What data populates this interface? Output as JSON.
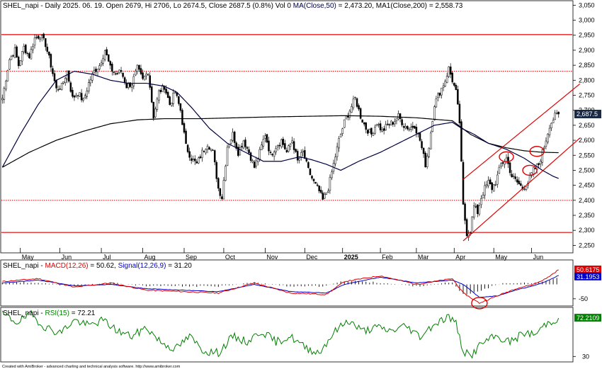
{
  "header": {
    "symbol": "SHEL_napi",
    "main": "SHEL_napi - Daily 2025. 06. 19. Open 2679, Hi 2706, Lo 2674.5, Close 2687.5 (0.8%) Vol 0",
    "ma50_label": "MA(Close,50)",
    "ma50_value": "= 2,473.20,",
    "ma200_label": "MA1(Close,200)",
    "ma200_value": "= 2,558.73",
    "macd_prefix": "SHEL_napi -",
    "macd_label": "MACD(12,26)",
    "macd_value": "= 50.62,",
    "signal_label": "Signal(12,26,9)",
    "signal_value": "= 31.20",
    "rsi_prefix": "SHEL_napi -",
    "rsi_label": "RSI(15)",
    "rsi_value": "= 72.21"
  },
  "footer": "Created with AmiBroker - advanced charting and technical analysis software. http://www.amibroker.com",
  "colors": {
    "price": "#000000",
    "ma50": "#000040",
    "ma200": "#000000",
    "hline": "#e00000",
    "channel": "#e00000",
    "macd": "#e00000",
    "signal": "#0000cc",
    "hist": "#000000",
    "rsi": "#008000",
    "last_price_bg": "#1a2a44",
    "macd_tag": "#e00000",
    "signal_tag": "#0000cc",
    "rsi_tag": "#008000"
  },
  "chart_data": {
    "type": "candlestick",
    "y_ticks": [
      "3,050",
      "3,000",
      "2,950",
      "2,900",
      "2,850",
      "2,800",
      "2,750",
      "2,700",
      "2,650",
      "2,600",
      "2,550",
      "2,500",
      "2,450",
      "2,400",
      "2,350",
      "2,300",
      "2,250"
    ],
    "y_values": [
      3050,
      3000,
      2950,
      2900,
      2850,
      2800,
      2750,
      2700,
      2650,
      2600,
      2550,
      2500,
      2450,
      2400,
      2350,
      2300,
      2250
    ],
    "ylim": [
      2225,
      3065
    ],
    "x_labels": [
      "May",
      "Jun",
      "Jul",
      "Aug",
      "Sep",
      "Oct",
      "Nov",
      "Dec",
      "2025",
      "Feb",
      "Mar",
      "Apr",
      "May",
      "Jun"
    ],
    "x_label_index": [
      10,
      32,
      55,
      78,
      101,
      123,
      146,
      168,
      189,
      210,
      230,
      251,
      273,
      294
    ],
    "x_count": 310,
    "horizontal_lines": [
      {
        "value": 2952,
        "style": "solid"
      },
      {
        "value": 2830,
        "style": "dotted"
      },
      {
        "value": 2400,
        "style": "dotted"
      },
      {
        "value": 2293,
        "style": "solid"
      }
    ],
    "channel": {
      "lower": [
        [
          256,
          2265
        ],
        [
          309,
          2545
        ]
      ],
      "upper": [
        [
          256,
          2470
        ],
        [
          309,
          2730
        ]
      ]
    },
    "ellipses": [
      {
        "x": 280,
        "value": 2545
      },
      {
        "x": 293,
        "value": 2500
      },
      {
        "x": 297,
        "value": 2563
      }
    ],
    "last_price": "2,687.5",
    "last_value": 2687.5,
    "anchors": [
      [
        0,
        2740
      ],
      [
        4,
        2870
      ],
      [
        7,
        2900
      ],
      [
        9,
        2850
      ],
      [
        12,
        2910
      ],
      [
        15,
        2880
      ],
      [
        18,
        2940
      ],
      [
        21,
        2950
      ],
      [
        24,
        2920
      ],
      [
        27,
        2850
      ],
      [
        30,
        2770
      ],
      [
        33,
        2780
      ],
      [
        36,
        2830
      ],
      [
        39,
        2740
      ],
      [
        42,
        2760
      ],
      [
        45,
        2730
      ],
      [
        48,
        2790
      ],
      [
        51,
        2830
      ],
      [
        54,
        2850
      ],
      [
        57,
        2900
      ],
      [
        60,
        2840
      ],
      [
        63,
        2820
      ],
      [
        66,
        2830
      ],
      [
        69,
        2780
      ],
      [
        72,
        2790
      ],
      [
        75,
        2840
      ],
      [
        78,
        2800
      ],
      [
        81,
        2830
      ],
      [
        84,
        2680
      ],
      [
        87,
        2760
      ],
      [
        90,
        2780
      ],
      [
        93,
        2720
      ],
      [
        96,
        2760
      ],
      [
        99,
        2700
      ],
      [
        102,
        2580
      ],
      [
        105,
        2540
      ],
      [
        108,
        2520
      ],
      [
        111,
        2560
      ],
      [
        114,
        2590
      ],
      [
        117,
        2560
      ],
      [
        120,
        2440
      ],
      [
        122,
        2410
      ],
      [
        125,
        2580
      ],
      [
        128,
        2620
      ],
      [
        131,
        2560
      ],
      [
        134,
        2600
      ],
      [
        137,
        2560
      ],
      [
        140,
        2510
      ],
      [
        143,
        2560
      ],
      [
        146,
        2620
      ],
      [
        149,
        2550
      ],
      [
        152,
        2580
      ],
      [
        155,
        2600
      ],
      [
        158,
        2560
      ],
      [
        161,
        2600
      ],
      [
        164,
        2530
      ],
      [
        167,
        2560
      ],
      [
        170,
        2500
      ],
      [
        173,
        2460
      ],
      [
        176,
        2430
      ],
      [
        178,
        2400
      ],
      [
        181,
        2440
      ],
      [
        184,
        2520
      ],
      [
        187,
        2600
      ],
      [
        190,
        2660
      ],
      [
        193,
        2700
      ],
      [
        196,
        2740
      ],
      [
        199,
        2680
      ],
      [
        202,
        2640
      ],
      [
        205,
        2620
      ],
      [
        208,
        2660
      ],
      [
        211,
        2630
      ],
      [
        214,
        2650
      ],
      [
        217,
        2660
      ],
      [
        220,
        2680
      ],
      [
        223,
        2650
      ],
      [
        226,
        2640
      ],
      [
        229,
        2650
      ],
      [
        232,
        2600
      ],
      [
        235,
        2520
      ],
      [
        237,
        2580
      ],
      [
        240,
        2720
      ],
      [
        243,
        2760
      ],
      [
        246,
        2800
      ],
      [
        248,
        2840
      ],
      [
        250,
        2800
      ],
      [
        252,
        2760
      ],
      [
        254,
        2660
      ],
      [
        256,
        2380
      ],
      [
        258,
        2290
      ],
      [
        260,
        2300
      ],
      [
        262,
        2380
      ],
      [
        264,
        2360
      ],
      [
        266,
        2410
      ],
      [
        268,
        2440
      ],
      [
        270,
        2460
      ],
      [
        272,
        2440
      ],
      [
        274,
        2460
      ],
      [
        277,
        2520
      ],
      [
        280,
        2540
      ],
      [
        283,
        2480
      ],
      [
        286,
        2460
      ],
      [
        289,
        2440
      ],
      [
        292,
        2460
      ],
      [
        295,
        2500
      ],
      [
        298,
        2520
      ],
      [
        301,
        2580
      ],
      [
        304,
        2650
      ],
      [
        307,
        2680
      ],
      [
        309,
        2687.5
      ]
    ],
    "ma50_anchors": [
      [
        0,
        2510
      ],
      [
        10,
        2620
      ],
      [
        20,
        2720
      ],
      [
        30,
        2800
      ],
      [
        40,
        2830
      ],
      [
        50,
        2820
      ],
      [
        60,
        2800
      ],
      [
        70,
        2790
      ],
      [
        80,
        2790
      ],
      [
        90,
        2780
      ],
      [
        97,
        2760
      ],
      [
        105,
        2710
      ],
      [
        115,
        2640
      ],
      [
        125,
        2590
      ],
      [
        135,
        2560
      ],
      [
        145,
        2530
      ],
      [
        155,
        2530
      ],
      [
        165,
        2545
      ],
      [
        172,
        2535
      ],
      [
        180,
        2520
      ],
      [
        188,
        2500
      ],
      [
        198,
        2530
      ],
      [
        210,
        2560
      ],
      [
        220,
        2590
      ],
      [
        230,
        2620
      ],
      [
        240,
        2650
      ],
      [
        250,
        2660
      ],
      [
        255,
        2640
      ],
      [
        262,
        2620
      ],
      [
        270,
        2590
      ],
      [
        280,
        2570
      ],
      [
        290,
        2540
      ],
      [
        300,
        2500
      ],
      [
        306,
        2480
      ],
      [
        309,
        2473
      ]
    ],
    "ma200_anchors": [
      [
        0,
        2510
      ],
      [
        15,
        2560
      ],
      [
        30,
        2600
      ],
      [
        45,
        2630
      ],
      [
        60,
        2655
      ],
      [
        75,
        2668
      ],
      [
        90,
        2672
      ],
      [
        110,
        2672
      ],
      [
        130,
        2675
      ],
      [
        150,
        2678
      ],
      [
        170,
        2680
      ],
      [
        190,
        2682
      ],
      [
        210,
        2680
      ],
      [
        230,
        2675
      ],
      [
        250,
        2665
      ],
      [
        260,
        2620
      ],
      [
        270,
        2590
      ],
      [
        280,
        2575
      ],
      [
        290,
        2565
      ],
      [
        300,
        2560
      ],
      [
        309,
        2558.73
      ]
    ],
    "macd": {
      "ticks": [
        "-50"
      ],
      "tick_values": [
        -50
      ],
      "ylim": [
        -75,
        85
      ],
      "tag_macd": "50.6175",
      "tag_signal": "31.1953",
      "macd_anchors": [
        [
          0,
          10
        ],
        [
          20,
          20
        ],
        [
          40,
          -10
        ],
        [
          60,
          5
        ],
        [
          80,
          -20
        ],
        [
          100,
          -25
        ],
        [
          120,
          -30
        ],
        [
          140,
          5
        ],
        [
          160,
          -30
        ],
        [
          180,
          -35
        ],
        [
          190,
          10
        ],
        [
          210,
          30
        ],
        [
          230,
          0
        ],
        [
          250,
          20
        ],
        [
          256,
          -30
        ],
        [
          265,
          -65
        ],
        [
          275,
          -40
        ],
        [
          285,
          -15
        ],
        [
          295,
          0
        ],
        [
          302,
          20
        ],
        [
          309,
          50.62
        ]
      ],
      "signal_anchors": [
        [
          0,
          5
        ],
        [
          20,
          15
        ],
        [
          40,
          -5
        ],
        [
          60,
          0
        ],
        [
          80,
          -15
        ],
        [
          100,
          -20
        ],
        [
          120,
          -25
        ],
        [
          140,
          0
        ],
        [
          160,
          -25
        ],
        [
          180,
          -30
        ],
        [
          190,
          0
        ],
        [
          210,
          25
        ],
        [
          230,
          5
        ],
        [
          250,
          15
        ],
        [
          256,
          0
        ],
        [
          265,
          -45
        ],
        [
          275,
          -40
        ],
        [
          285,
          -20
        ],
        [
          295,
          -5
        ],
        [
          302,
          10
        ],
        [
          309,
          31.2
        ]
      ]
    },
    "rsi": {
      "ticks": [
        "30"
      ],
      "tick_values": [
        30
      ],
      "ylim": [
        24,
        84
      ],
      "tag": "72.2109",
      "anchors": [
        [
          0,
          76
        ],
        [
          8,
          68
        ],
        [
          16,
          76
        ],
        [
          24,
          62
        ],
        [
          32,
          56
        ],
        [
          40,
          70
        ],
        [
          48,
          64
        ],
        [
          56,
          70
        ],
        [
          64,
          58
        ],
        [
          72,
          52
        ],
        [
          80,
          62
        ],
        [
          88,
          46
        ],
        [
          96,
          38
        ],
        [
          104,
          52
        ],
        [
          112,
          36
        ],
        [
          120,
          34
        ],
        [
          128,
          52
        ],
        [
          136,
          46
        ],
        [
          144,
          58
        ],
        [
          152,
          46
        ],
        [
          160,
          52
        ],
        [
          168,
          40
        ],
        [
          176,
          34
        ],
        [
          184,
          56
        ],
        [
          192,
          70
        ],
        [
          200,
          58
        ],
        [
          208,
          62
        ],
        [
          216,
          58
        ],
        [
          224,
          64
        ],
        [
          232,
          52
        ],
        [
          240,
          66
        ],
        [
          248,
          74
        ],
        [
          252,
          66
        ],
        [
          256,
          36
        ],
        [
          260,
          30
        ],
        [
          266,
          44
        ],
        [
          274,
          52
        ],
        [
          282,
          46
        ],
        [
          290,
          56
        ],
        [
          296,
          54
        ],
        [
          302,
          66
        ],
        [
          309,
          72.21
        ]
      ]
    }
  }
}
